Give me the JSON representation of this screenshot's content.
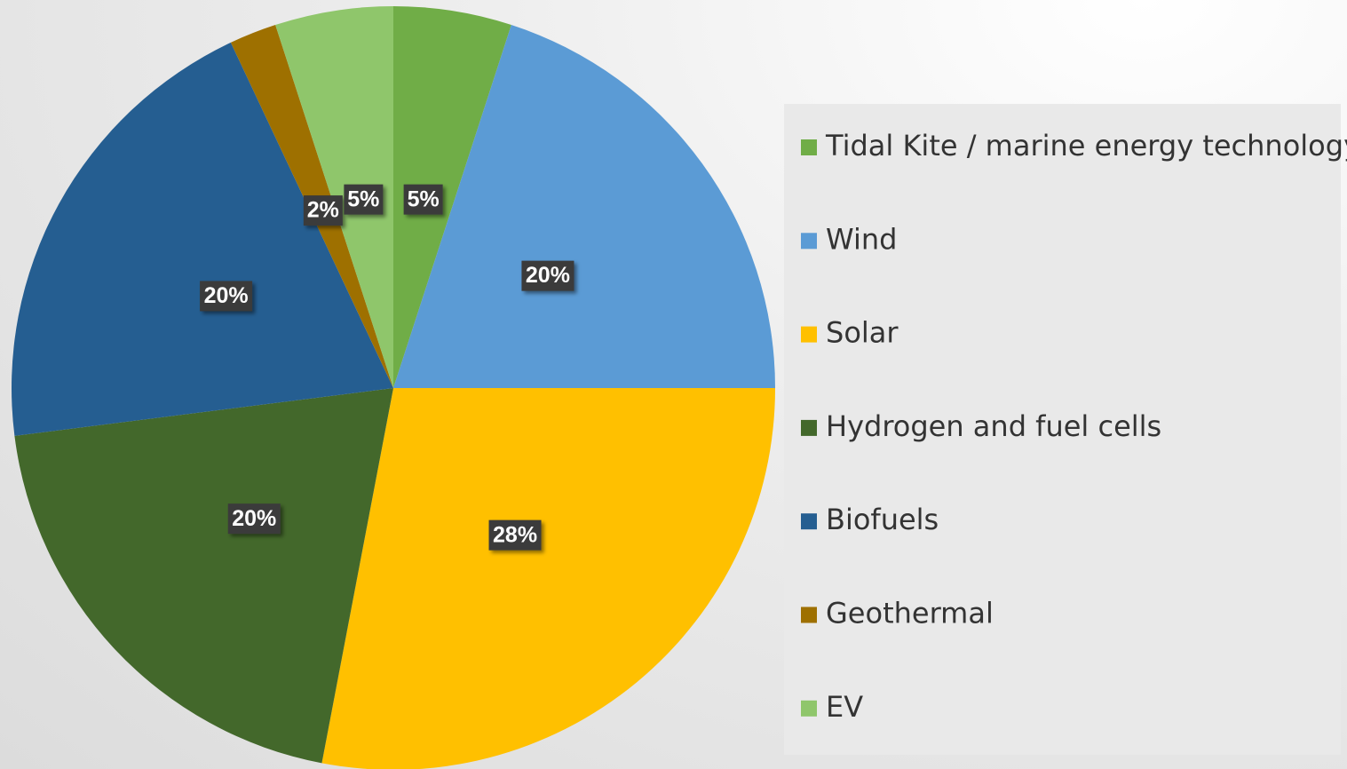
{
  "chart_data": {
    "type": "pie",
    "categories": [
      "Tidal Kite / marine energy technology",
      "Wind",
      "Solar",
      "Hydrogen and fuel cells",
      "Biofuels",
      "Geothermal",
      "EV"
    ],
    "values": [
      5,
      20,
      28,
      20,
      20,
      2,
      5
    ],
    "value_labels": [
      "5%",
      "20%",
      "28%",
      "20%",
      "20%",
      "2%",
      "5%"
    ],
    "colors": [
      "#70ad47",
      "#5b9bd5",
      "#ffc000",
      "#43682b",
      "#255e91",
      "#9e7000",
      "#8fc66b"
    ],
    "legend": "right"
  }
}
